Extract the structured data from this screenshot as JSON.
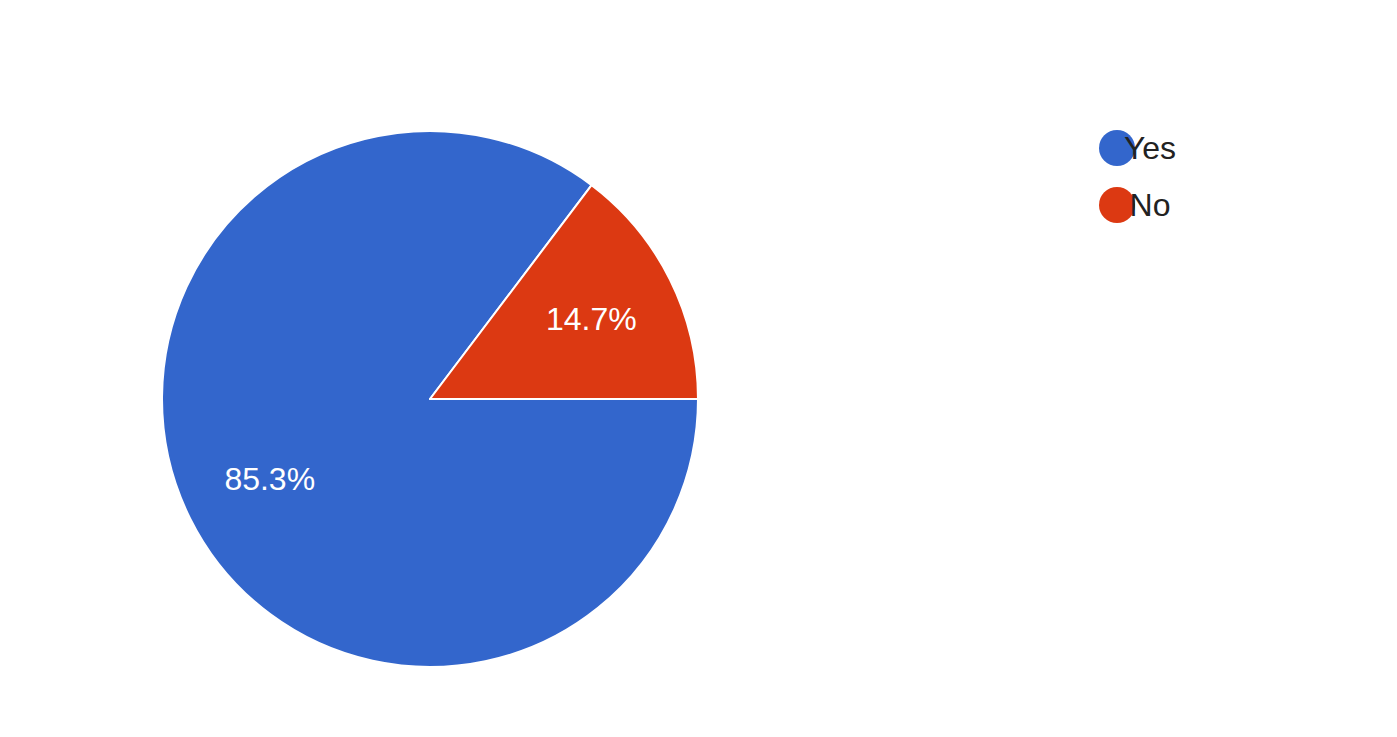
{
  "chart_data": {
    "type": "pie",
    "categories": [
      "Yes",
      "No"
    ],
    "values": [
      85.3,
      14.7
    ],
    "value_labels": [
      "85.3%",
      "14.7%"
    ],
    "colors": [
      "#3366cc",
      "#dc3912"
    ],
    "data_labels": true,
    "legend": "right"
  }
}
